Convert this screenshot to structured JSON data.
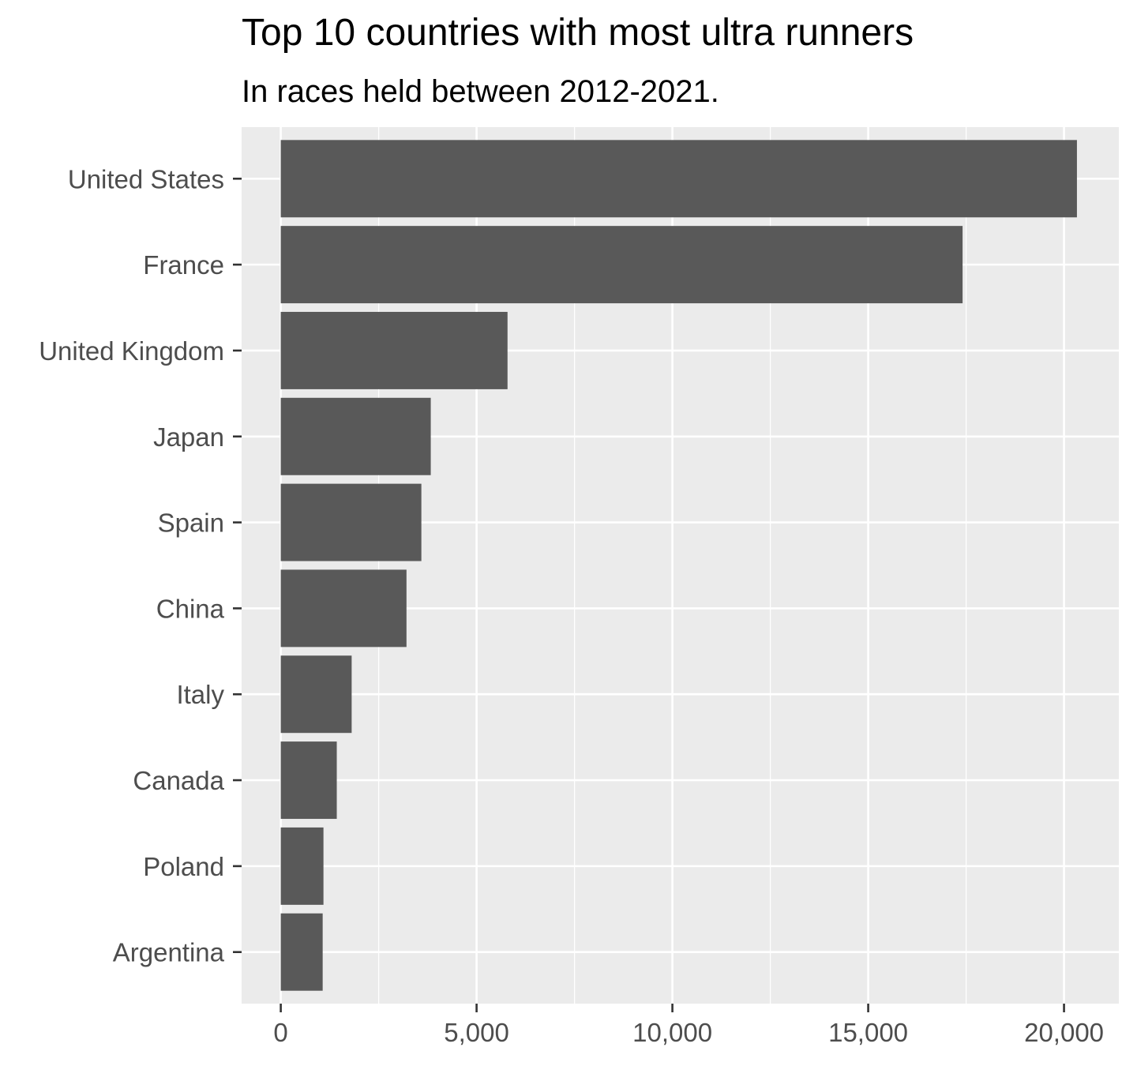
{
  "chart_data": {
    "type": "bar",
    "orientation": "horizontal",
    "title": "Top 10 countries with most ultra runners",
    "subtitle": "In races held between 2012-2021.",
    "xlabel": "",
    "ylabel": "",
    "categories": [
      "United States",
      "France",
      "United Kingdom",
      "Japan",
      "Spain",
      "China",
      "Italy",
      "Canada",
      "Poland",
      "Argentina"
    ],
    "values": [
      20330,
      17410,
      5790,
      3830,
      3590,
      3210,
      1810,
      1430,
      1090,
      1070
    ],
    "xlim": [
      -1000,
      21400
    ],
    "xticks": [
      0,
      5000,
      10000,
      15000,
      20000
    ],
    "xtick_labels": [
      "0",
      "5,000",
      "10,000",
      "15,000",
      "20,000"
    ],
    "grid": true,
    "legend": "none",
    "colors": {
      "bar": "#595959",
      "panel_background": "#ebebeb",
      "gridline": "#ffffff",
      "tick_label": "#4d4d4d",
      "axis_tick": "#333333"
    }
  }
}
